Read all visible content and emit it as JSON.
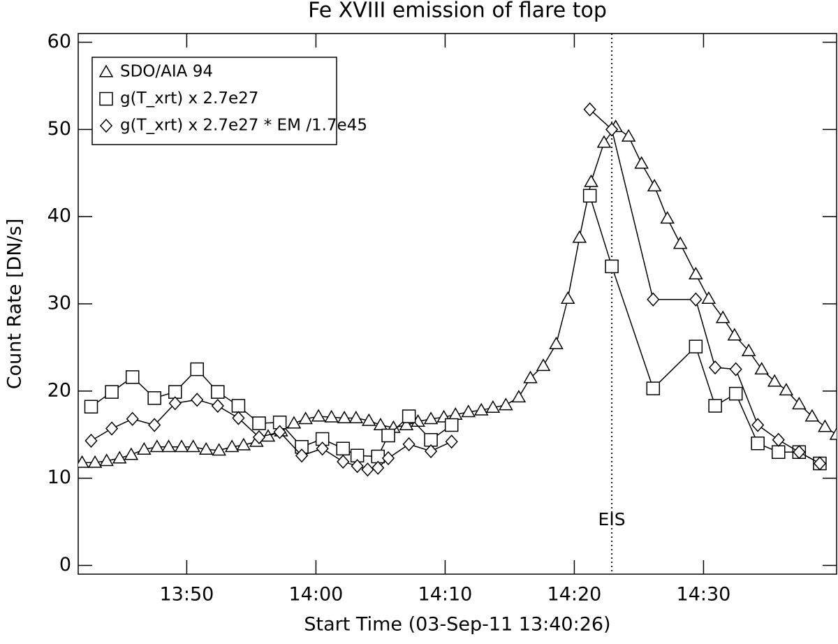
{
  "chart_data": {
    "type": "line",
    "title": "Fe XVIII emission of flare top",
    "x_label": "Start Time (03-Sep-11 13:40:26)",
    "y_label": "Count Rate [DN/s]",
    "xlim": [
      41.6,
      100.3
    ],
    "ylim": [
      -1,
      61
    ],
    "xticks": [
      {
        "value": 50,
        "label": "13:50"
      },
      {
        "value": 60,
        "label": "14:00"
      },
      {
        "value": 70,
        "label": "14:10"
      },
      {
        "value": 80,
        "label": "14:20"
      },
      {
        "value": 90,
        "label": "14:30"
      }
    ],
    "yticks": [
      0,
      10,
      20,
      30,
      40,
      50,
      60
    ],
    "legend": "upper left",
    "vline": {
      "x": 82.9,
      "label": "EIS",
      "style": "dotted"
    },
    "series": [
      {
        "name": "SDO/AIA 94",
        "marker": "triangle",
        "color": "#000000",
        "x": [
          41.9,
          42.9,
          43.8,
          44.8,
          45.7,
          46.7,
          47.7,
          48.6,
          49.6,
          50.5,
          51.5,
          52.5,
          53.5,
          54.4,
          55.4,
          56.3,
          57.3,
          58.3,
          59.2,
          60.2,
          61.2,
          62.2,
          63.1,
          64.1,
          65.0,
          66.0,
          67.0,
          67.9,
          68.9,
          69.9,
          70.8,
          71.8,
          72.8,
          73.7,
          74.7,
          75.7,
          76.6,
          77.6,
          78.6,
          79.5,
          80.4,
          81.3,
          82.3,
          83.2,
          84.2,
          85.2,
          86.2,
          87.2,
          88.2,
          89.4,
          90.4,
          91.5,
          92.4,
          93.5,
          94.5,
          95.5,
          96.4,
          97.4,
          98.4,
          99.4,
          100.3
        ],
        "values": [
          11.8,
          11.8,
          12.0,
          12.3,
          12.7,
          13.3,
          13.6,
          13.6,
          13.6,
          13.6,
          13.3,
          13.2,
          13.6,
          13.8,
          14.2,
          14.8,
          15.4,
          16.3,
          16.8,
          17.1,
          17.0,
          16.9,
          16.9,
          16.6,
          16.1,
          15.8,
          16.1,
          16.5,
          16.8,
          17.0,
          17.3,
          17.6,
          17.8,
          18.1,
          18.4,
          19.3,
          21.5,
          22.9,
          25.4,
          30.6,
          37.6,
          44.0,
          48.5,
          50.3,
          49.2,
          46.1,
          43.5,
          39.8,
          36.9,
          33.4,
          30.6,
          28.4,
          26.4,
          24.6,
          22.5,
          21.1,
          20.1,
          18.5,
          17.1,
          15.9,
          15.0
        ]
      },
      {
        "name": "g(T_xrt) x 2.7e27",
        "marker": "square",
        "color": "#000000",
        "x": [
          42.6,
          44.2,
          45.8,
          47.5,
          49.1,
          50.8,
          52.4,
          54.0,
          55.6,
          57.2,
          58.9,
          60.5,
          62.1,
          63.2,
          64.8,
          65.6,
          67.2,
          68.9,
          70.5,
          null,
          81.2,
          82.9,
          86.1,
          89.4,
          90.9,
          92.5,
          94.2,
          95.8,
          97.4,
          99.0
        ],
        "values": [
          18.2,
          19.9,
          21.6,
          19.2,
          19.9,
          22.5,
          19.9,
          18.3,
          16.3,
          16.4,
          13.6,
          14.5,
          13.4,
          12.6,
          12.5,
          14.9,
          17.1,
          14.4,
          16.1,
          null,
          42.4,
          34.3,
          20.3,
          25.1,
          18.3,
          19.7,
          14.0,
          13.0,
          13.0,
          11.7
        ]
      },
      {
        "name": "g(T_xrt) x 2.7e27 * EM /1.7e45",
        "marker": "diamond",
        "color": "#000000",
        "x": [
          42.6,
          44.2,
          45.8,
          47.5,
          49.1,
          50.8,
          52.4,
          54.0,
          55.6,
          57.2,
          58.9,
          60.5,
          62.1,
          63.2,
          64.0,
          64.8,
          65.6,
          67.2,
          68.9,
          70.5,
          null,
          81.2,
          82.9,
          86.1,
          89.4,
          90.9,
          92.5,
          94.2,
          95.8,
          97.4,
          99.0
        ],
        "values": [
          14.3,
          15.7,
          16.8,
          16.1,
          18.6,
          19.0,
          18.3,
          16.9,
          14.7,
          15.3,
          12.6,
          13.4,
          11.9,
          11.4,
          11.0,
          11.2,
          12.3,
          13.9,
          13.1,
          14.2,
          null,
          52.3,
          50.0,
          30.5,
          30.5,
          22.7,
          22.5,
          16.1,
          14.4,
          13.0,
          11.7
        ]
      }
    ]
  }
}
